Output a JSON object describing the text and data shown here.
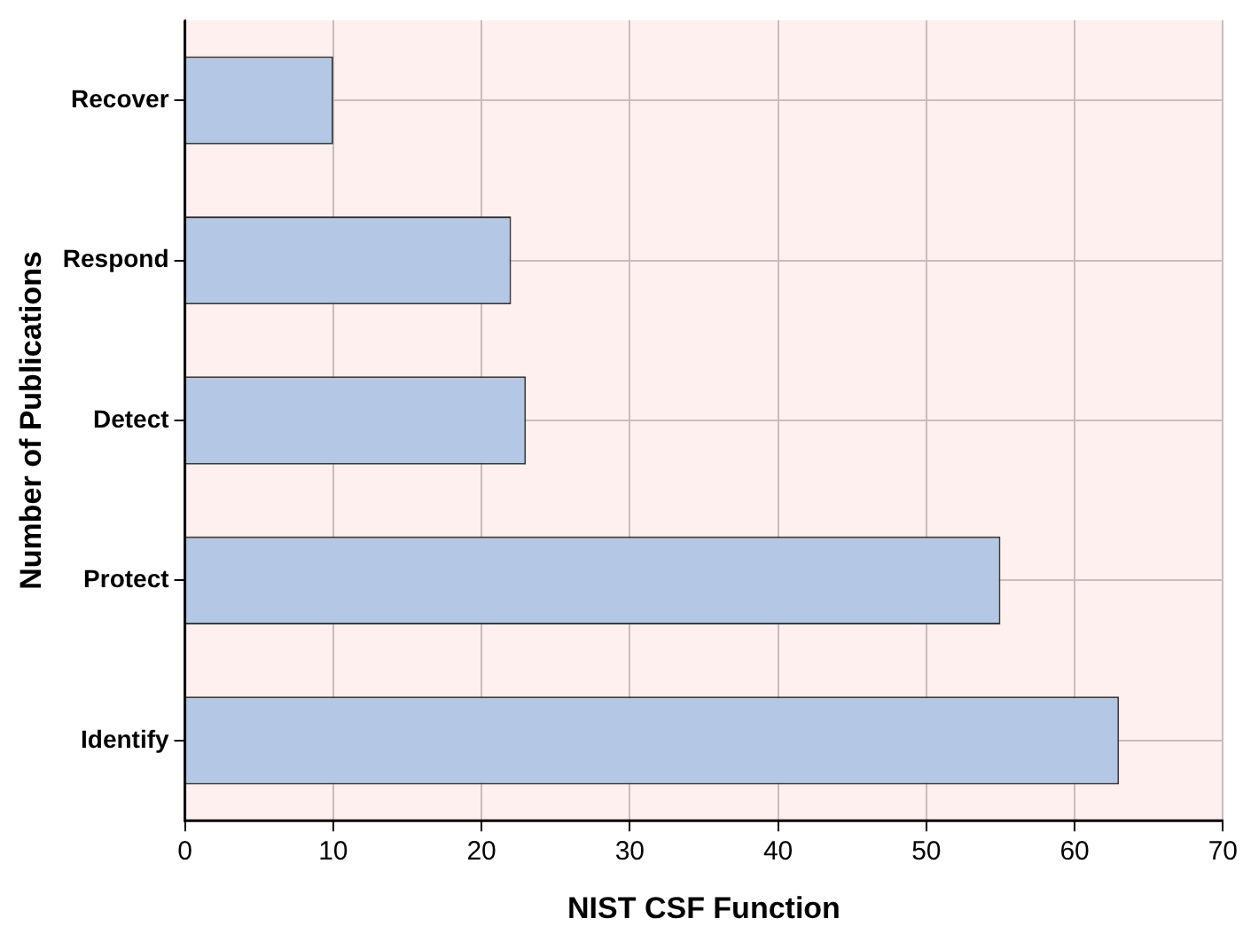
{
  "chart_data": {
    "type": "bar",
    "orientation": "horizontal",
    "xlabel": "NIST CSF Function",
    "ylabel": "Number of Publications",
    "categories": [
      "Recover",
      "Respond",
      "Detect",
      "Protect",
      "Identify"
    ],
    "values": [
      10,
      22,
      23,
      55,
      63
    ],
    "color": "#b4c7e4",
    "xlim": [
      0,
      70
    ],
    "xticks": [
      0,
      10,
      20,
      30,
      40,
      50,
      60,
      70
    ],
    "grid": true
  }
}
